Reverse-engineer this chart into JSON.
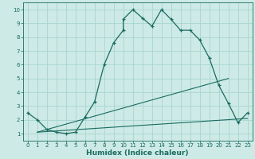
{
  "xlabel": "Humidex (Indice chaleur)",
  "xlim": [
    -0.5,
    23.5
  ],
  "ylim": [
    0.5,
    10.5
  ],
  "yticks": [
    1,
    2,
    3,
    4,
    5,
    6,
    7,
    8,
    9,
    10
  ],
  "xticks": [
    0,
    1,
    2,
    3,
    4,
    5,
    6,
    7,
    8,
    9,
    10,
    11,
    12,
    13,
    14,
    15,
    16,
    17,
    18,
    19,
    20,
    21,
    22,
    23
  ],
  "bg_color": "#cdeae6",
  "line_color": "#1a6b60",
  "grid_color": "#a8d5d0",
  "curve1_x": [
    0,
    1,
    2,
    3,
    4,
    5,
    6,
    7,
    8,
    9,
    10,
    10,
    11,
    12,
    13,
    14,
    15,
    16,
    17,
    18,
    19,
    20,
    21,
    22,
    23
  ],
  "curve1_y": [
    2.5,
    2.0,
    1.3,
    1.1,
    1.0,
    1.1,
    2.2,
    3.3,
    6.0,
    7.6,
    8.5,
    9.3,
    10.0,
    9.4,
    8.8,
    10.0,
    9.3,
    8.5,
    8.5,
    7.8,
    6.5,
    4.5,
    3.2,
    1.8,
    2.5
  ],
  "curve2_x": [
    1,
    23
  ],
  "curve2_y": [
    1.1,
    2.1
  ],
  "curve3_x": [
    1,
    21
  ],
  "curve3_y": [
    1.1,
    5.0
  ],
  "tick_fontsize": 5.0,
  "xlabel_fontsize": 6.5
}
